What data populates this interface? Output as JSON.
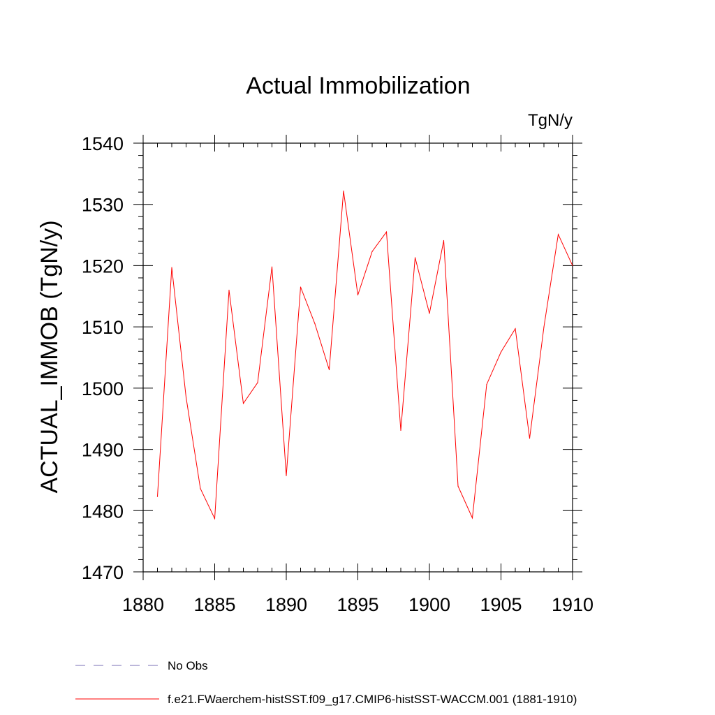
{
  "chart_data": {
    "type": "line",
    "title": "Actual Immobilization",
    "units_label": "TgN/y",
    "xlabel": "",
    "ylabel": "ACTUAL_IMMOB  (TgN/y)",
    "xlim": [
      1880,
      1910
    ],
    "ylim": [
      1470,
      1540
    ],
    "x_ticks": [
      1880,
      1885,
      1890,
      1895,
      1900,
      1905,
      1910
    ],
    "y_ticks": [
      1470,
      1480,
      1490,
      1500,
      1510,
      1520,
      1530,
      1540
    ],
    "grid": false,
    "legend_position": "bottom-left",
    "series": [
      {
        "name": "f.e21.FWaerchem-histSST.f09_g17.CMIP6-histSST-WACCM.001 (1881-1910)",
        "color": "#ff0000",
        "x": [
          1881,
          1882,
          1883,
          1884,
          1885,
          1886,
          1887,
          1888,
          1889,
          1890,
          1891,
          1892,
          1893,
          1894,
          1895,
          1896,
          1897,
          1898,
          1899,
          1900,
          1901,
          1902,
          1903,
          1904,
          1905,
          1906,
          1907,
          1908,
          1909,
          1910
        ],
        "values": [
          1482.3,
          1519.7,
          1498.5,
          1483.6,
          1478.7,
          1516.0,
          1497.5,
          1500.9,
          1519.8,
          1485.7,
          1516.5,
          1510.5,
          1503.0,
          1532.2,
          1515.2,
          1522.3,
          1525.5,
          1493.1,
          1521.3,
          1512.2,
          1524.1,
          1484.0,
          1478.8,
          1500.6,
          1505.9,
          1509.7,
          1491.8,
          1510.0,
          1525.1,
          1520.0
        ]
      }
    ],
    "legend": [
      {
        "label": "No Obs",
        "style": "dashed",
        "color": "#7a6fb5"
      },
      {
        "label": "f.e21.FWaerchem-histSST.f09_g17.CMIP6-histSST-WACCM.001 (1881-1910)",
        "style": "solid",
        "color": "#ff0000"
      }
    ]
  }
}
